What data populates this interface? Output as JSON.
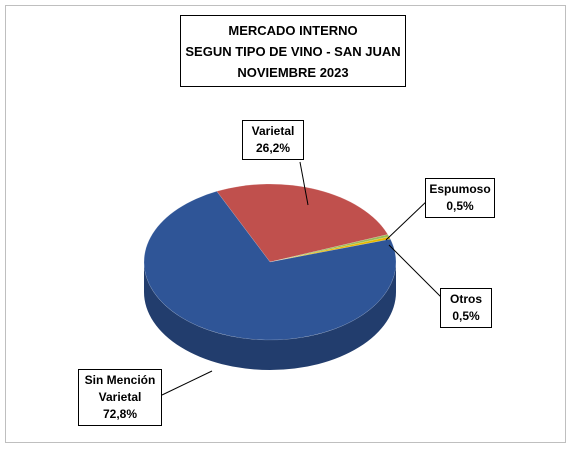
{
  "chart_data": {
    "type": "pie3d",
    "title": [
      "MERCADO INTERNO",
      "SEGUN TIPO DE VINO - SAN JUAN",
      "NOVIEMBRE 2023"
    ],
    "categories": [
      "Varietal",
      "Espumoso",
      "Otros",
      "Sin Mención Varietal"
    ],
    "values": [
      26.2,
      0.5,
      0.5,
      72.8
    ],
    "value_labels": [
      "26,2%",
      "0,5%",
      "0,5%",
      "72,8%"
    ],
    "colors": [
      "#c0504d",
      "#9bbb59",
      "#e6b800",
      "#2f5597"
    ]
  }
}
